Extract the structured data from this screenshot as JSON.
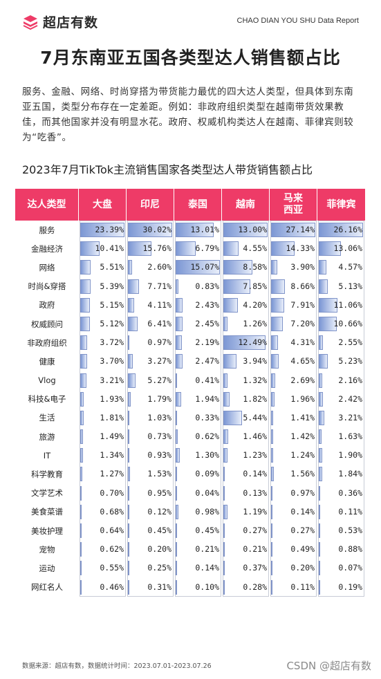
{
  "header": {
    "logo_text": "超店有数",
    "report_tag": "CHAO DIAN YOU SHU Data Report"
  },
  "title": "7月东南亚五国各类型达人销售额占比",
  "description": "服务、金融、网络、时尚穿搭为带货能力最优的四大达人类型，但具体到东南亚五国，类型分布存在一定差距。例如：非政府组织类型在越南带货效果教佳，而其他国家并没有明显水花。政府、权威机构类达人在越南、菲律宾则较为“吃香”。",
  "chart_title": "2023年7月TikTok主流销售国家各类型达人带货销售额占比",
  "colors": {
    "header_pink": "#ee3b67",
    "bar_blue": "#7c97d4"
  },
  "chart_data": {
    "type": "table",
    "row_header": "达人类型",
    "columns": [
      "大盘",
      "印尼",
      "泰国",
      "越南",
      "马来\n西亚",
      "菲律宾"
    ],
    "rows": [
      {
        "category": "服务",
        "values": [
          23.39,
          30.02,
          13.01,
          13.0,
          27.14,
          26.16
        ]
      },
      {
        "category": "金融经济",
        "values": [
          10.41,
          15.76,
          6.79,
          4.55,
          14.33,
          13.06
        ]
      },
      {
        "category": "网络",
        "values": [
          5.51,
          2.6,
          15.07,
          8.58,
          3.9,
          4.57
        ]
      },
      {
        "category": "时尚&穿搭",
        "values": [
          5.39,
          7.71,
          0.83,
          7.85,
          8.66,
          5.13
        ]
      },
      {
        "category": "政府",
        "values": [
          5.15,
          4.11,
          2.43,
          4.2,
          7.91,
          11.06
        ]
      },
      {
        "category": "权威顾问",
        "values": [
          5.12,
          6.41,
          2.45,
          1.26,
          7.2,
          10.66
        ]
      },
      {
        "category": "非政府组织",
        "values": [
          3.72,
          0.97,
          2.19,
          12.49,
          4.31,
          2.55
        ]
      },
      {
        "category": "健康",
        "values": [
          3.7,
          3.27,
          2.47,
          3.94,
          4.65,
          5.23
        ]
      },
      {
        "category": "Vlog",
        "values": [
          3.21,
          5.27,
          0.41,
          1.32,
          2.69,
          2.16
        ]
      },
      {
        "category": "科技&电子",
        "values": [
          1.93,
          1.79,
          1.94,
          1.82,
          1.96,
          2.42
        ]
      },
      {
        "category": "生活",
        "values": [
          1.81,
          1.03,
          0.33,
          5.44,
          1.41,
          3.21
        ]
      },
      {
        "category": "旅游",
        "values": [
          1.49,
          0.73,
          0.62,
          1.46,
          1.42,
          1.63
        ]
      },
      {
        "category": "IT",
        "values": [
          1.34,
          0.93,
          1.3,
          1.23,
          1.24,
          1.9
        ]
      },
      {
        "category": "科学教育",
        "values": [
          1.27,
          1.53,
          0.09,
          0.14,
          1.56,
          1.84
        ]
      },
      {
        "category": "文学艺术",
        "values": [
          0.7,
          0.95,
          0.04,
          0.13,
          0.97,
          0.36
        ]
      },
      {
        "category": "美食菜谱",
        "values": [
          0.68,
          0.12,
          0.98,
          1.19,
          0.14,
          0.11
        ]
      },
      {
        "category": "美妆护理",
        "values": [
          0.64,
          0.45,
          0.45,
          0.27,
          0.27,
          0.53
        ]
      },
      {
        "category": "宠物",
        "values": [
          0.62,
          0.2,
          0.21,
          0.21,
          0.49,
          0.88
        ]
      },
      {
        "category": "运动",
        "values": [
          0.55,
          0.25,
          0.14,
          0.37,
          0.2,
          0.07
        ]
      },
      {
        "category": "网红名人",
        "values": [
          0.46,
          0.31,
          0.1,
          0.28,
          0.11,
          0.19
        ]
      }
    ],
    "unit": "%"
  },
  "footer": {
    "source": "数据来源：超店有数，数据统计时间：2023.07.01-2023.07.26",
    "watermark": "CSDN @超店有数"
  }
}
